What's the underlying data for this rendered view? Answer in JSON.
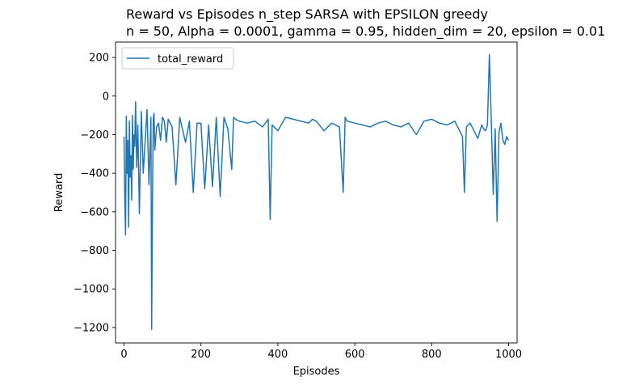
{
  "chart_data": {
    "type": "line",
    "title": "Reward vs Episodes n_step SARSA with EPSILON greedy",
    "subtitle": "n = 50, Alpha = 0.0001, gamma = 0.95, hidden_dim = 20, epsilon = 0.01",
    "xlabel": "Episodes",
    "ylabel": "Reward",
    "xlim": [
      -22,
      1022
    ],
    "ylim": [
      -1280,
      280
    ],
    "xticks": [
      0,
      200,
      400,
      600,
      800,
      1000
    ],
    "xtick_labels": [
      "0",
      "200",
      "400",
      "600",
      "800",
      "1000"
    ],
    "yticks": [
      200,
      0,
      -200,
      -400,
      -600,
      -800,
      -1000,
      -1200
    ],
    "ytick_labels": [
      "200",
      "0",
      "−200",
      "−400",
      "−600",
      "−800",
      "−1000",
      "−1200"
    ],
    "grid": false,
    "legend_position": "top-left",
    "series_color": "#1f77b4",
    "series": [
      {
        "name": "total_reward",
        "x": [
          0,
          2,
          4,
          6,
          8,
          10,
          12,
          14,
          16,
          18,
          20,
          22,
          24,
          26,
          28,
          30,
          33,
          36,
          40,
          45,
          50,
          55,
          60,
          65,
          70,
          72,
          74,
          76,
          78,
          80,
          85,
          90,
          95,
          100,
          105,
          110,
          115,
          125,
          135,
          145,
          160,
          170,
          180,
          190,
          200,
          210,
          220,
          230,
          240,
          250,
          260,
          270,
          280,
          285,
          290,
          300,
          320,
          340,
          360,
          375,
          380,
          385,
          400,
          420,
          440,
          460,
          480,
          490,
          500,
          520,
          540,
          560,
          570,
          575,
          580,
          600,
          620,
          640,
          660,
          680,
          700,
          720,
          740,
          760,
          780,
          800,
          820,
          840,
          860,
          880,
          885,
          890,
          900,
          920,
          930,
          935,
          940,
          945,
          950,
          955,
          960,
          965,
          970,
          975,
          980,
          985,
          990,
          995,
          1000
        ],
        "values": [
          -210,
          -520,
          -720,
          -105,
          -400,
          -230,
          -680,
          -130,
          -420,
          -310,
          -540,
          -100,
          -380,
          -200,
          -260,
          -30,
          -370,
          -150,
          -610,
          -80,
          -400,
          -230,
          -70,
          -460,
          -110,
          -1210,
          -560,
          -120,
          -90,
          -280,
          -160,
          -140,
          -230,
          -110,
          -130,
          -240,
          -120,
          -160,
          -460,
          -110,
          -240,
          -130,
          -500,
          -140,
          -140,
          -480,
          -150,
          -470,
          -110,
          -520,
          -110,
          -170,
          -380,
          -110,
          -120,
          -130,
          -140,
          -130,
          -160,
          -120,
          -640,
          -150,
          -180,
          -110,
          -120,
          -130,
          -140,
          -120,
          -130,
          -180,
          -140,
          -160,
          -500,
          -110,
          -130,
          -140,
          -150,
          -160,
          -140,
          -130,
          -150,
          -160,
          -140,
          -200,
          -130,
          -120,
          -140,
          -150,
          -130,
          -210,
          -500,
          -160,
          -140,
          -220,
          -150,
          -170,
          -180,
          -150,
          215,
          -130,
          -510,
          -170,
          -650,
          -190,
          -140,
          -230,
          -250,
          -210,
          -230
        ]
      }
    ]
  }
}
